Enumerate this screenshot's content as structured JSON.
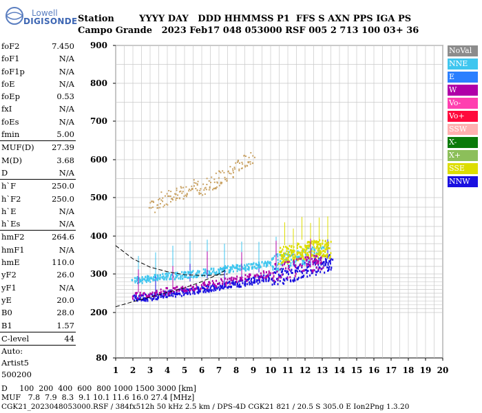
{
  "header": {
    "logo_top": "Lowell",
    "logo_bottom": "DIGISONDE",
    "row1": "Station        YYYY DAY   DDD HHMMSS P1  FFS S AXN PPS IGA PS",
    "row2": "Campo Grande   2023 Feb17 048 053000 RSF 005 2 713 100 03+ 36"
  },
  "params": {
    "group1": [
      {
        "name": "foF2",
        "value": "7.450"
      },
      {
        "name": "foF1",
        "value": "N/A"
      },
      {
        "name": "foF1p",
        "value": "N/A"
      },
      {
        "name": "foE",
        "value": "N/A"
      },
      {
        "name": "foEp",
        "value": "0.53"
      },
      {
        "name": "fxI",
        "value": "N/A"
      },
      {
        "name": "foEs",
        "value": "N/A"
      },
      {
        "name": "fmin",
        "value": "5.00"
      }
    ],
    "group2": [
      {
        "name": "MUF(D)",
        "value": "27.39"
      },
      {
        "name": "M(D)",
        "value": "3.68"
      },
      {
        "name": "D",
        "value": "N/A"
      }
    ],
    "group3": [
      {
        "name": "h`F",
        "value": "250.0"
      },
      {
        "name": "h`F2",
        "value": "250.0"
      },
      {
        "name": "h`E",
        "value": "N/A"
      },
      {
        "name": "h`Es",
        "value": "N/A"
      }
    ],
    "group4": [
      {
        "name": "hmF2",
        "value": "264.6"
      },
      {
        "name": "hmF1",
        "value": "N/A"
      },
      {
        "name": "hmE",
        "value": "110.0"
      },
      {
        "name": "yF2",
        "value": "26.0"
      },
      {
        "name": "yF1",
        "value": "N/A"
      },
      {
        "name": "yE",
        "value": "20.0"
      },
      {
        "name": "B0",
        "value": "28.0"
      },
      {
        "name": "B1",
        "value": "1.57"
      }
    ],
    "clevel": {
      "name": "C-level",
      "value": "44"
    },
    "auto": [
      "Auto:",
      "Artist5",
      "500200"
    ]
  },
  "legend": [
    {
      "label": "NoVal",
      "color": "#8c8c8c"
    },
    {
      "label": "NNE",
      "color": "#3fc6ef"
    },
    {
      "label": "E",
      "color": "#2a7fff"
    },
    {
      "label": "W",
      "color": "#b000a8"
    },
    {
      "label": "Vo-",
      "color": "#ff3fb0"
    },
    {
      "label": "Vo+",
      "color": "#ff0a3c"
    },
    {
      "label": "SSW",
      "color": "#ffb0b0"
    },
    {
      "label": "X-",
      "color": "#0a7a0a"
    },
    {
      "label": "X+",
      "color": "#8cbf5a"
    },
    {
      "label": "SSE",
      "color": "#dddd00"
    },
    {
      "label": "NNW",
      "color": "#1a10e0"
    }
  ],
  "footer": {
    "line1": "D     100  200  400  600  800 1000 1500 3000 [km]",
    "line2": "MUF   7.8  7.9  8.3  9.1 10.1 11.6 16.0 27.4 [MHz]",
    "line3": "CGK21_2023048053000.RSF / 384fx512h 50 kHz 2.5 km / DPS-4D CGK21 821 / 20.5 S 305.0 E Ion2Png 1.3.20"
  },
  "chart_data": {
    "type": "scatter",
    "title": "",
    "xlabel": "",
    "ylabel": "",
    "xlim": [
      1,
      20
    ],
    "ylim": [
      80,
      900
    ],
    "x_ticks": [
      "1",
      "2",
      "3",
      "4",
      "5",
      "6",
      "7",
      "8",
      "9",
      "10",
      "11",
      "12",
      "13",
      "14",
      "15",
      "16",
      "17",
      "18",
      "19",
      "20"
    ],
    "y_ticks": [
      "80",
      "200",
      "300",
      "400",
      "500",
      "600",
      "700",
      "800",
      "900"
    ],
    "y_tick_values": [
      80,
      200,
      300,
      400,
      500,
      600,
      700,
      800,
      900
    ],
    "y_grid_values": [
      200,
      210,
      220,
      230,
      240,
      250,
      260,
      270,
      280,
      290,
      300,
      320,
      340,
      360,
      380,
      400,
      425,
      450,
      475,
      500,
      550,
      600,
      650,
      700,
      750,
      800,
      850,
      900
    ],
    "grid": true,
    "series": [
      {
        "name": "",
        "kind": "echo-band",
        "color": "#1a10e0",
        "points": [
          [
            2.0,
            238
          ],
          [
            3.0,
            243
          ],
          [
            4.0,
            250
          ],
          [
            5.0,
            256
          ],
          [
            6.0,
            262
          ],
          [
            7.0,
            270
          ],
          [
            8.0,
            277
          ],
          [
            9.0,
            285
          ],
          [
            10.0,
            293
          ],
          [
            11.0,
            303
          ],
          [
            12.0,
            315
          ],
          [
            13.0,
            328
          ],
          [
            13.5,
            335
          ]
        ]
      },
      {
        "name": "",
        "kind": "echo-band",
        "color": "#3fc6ef",
        "points": [
          [
            2.0,
            285
          ],
          [
            3.0,
            290
          ],
          [
            4.0,
            296
          ],
          [
            5.0,
            300
          ],
          [
            6.0,
            305
          ],
          [
            7.0,
            312
          ],
          [
            8.0,
            318
          ],
          [
            9.0,
            324
          ],
          [
            10.0,
            330
          ],
          [
            11.0,
            340
          ],
          [
            12.0,
            350
          ],
          [
            13.0,
            358
          ]
        ]
      },
      {
        "name": "",
        "kind": "echo-band",
        "color": "#dddd00",
        "points": [
          [
            10.5,
            350
          ],
          [
            11.0,
            355
          ],
          [
            11.5,
            360
          ],
          [
            12.0,
            365
          ],
          [
            12.5,
            368
          ],
          [
            13.0,
            370
          ],
          [
            13.4,
            365
          ]
        ]
      },
      {
        "name": "",
        "kind": "echo-band",
        "color": "#b000a8",
        "points": [
          [
            2.0,
            245
          ],
          [
            4.0,
            258
          ],
          [
            6.0,
            272
          ],
          [
            8.0,
            288
          ],
          [
            10.0,
            305
          ],
          [
            12.0,
            325
          ],
          [
            13.0,
            335
          ]
        ]
      },
      {
        "name": "",
        "kind": "scatter",
        "color": "#c8a060",
        "points": [
          [
            3.0,
            470
          ],
          [
            3.5,
            495
          ],
          [
            4.0,
            500
          ],
          [
            4.5,
            515
          ],
          [
            5.0,
            510
          ],
          [
            5.5,
            530
          ],
          [
            6.0,
            520
          ],
          [
            6.5,
            540
          ],
          [
            7.0,
            555
          ],
          [
            7.5,
            560
          ],
          [
            8.0,
            580
          ],
          [
            8.5,
            600
          ],
          [
            9.0,
            610
          ]
        ]
      }
    ],
    "trace_lines": [
      {
        "name": "",
        "style": "dashed",
        "color": "#000000",
        "points": [
          [
            1.0,
            375
          ],
          [
            2.0,
            340
          ],
          [
            3.0,
            318
          ],
          [
            4.0,
            306
          ],
          [
            5.0,
            298
          ],
          [
            6.0,
            296
          ],
          [
            7.0,
            297
          ],
          [
            7.5,
            300
          ]
        ]
      },
      {
        "name": "",
        "style": "dashed",
        "color": "#000000",
        "points": [
          [
            1.0,
            215
          ],
          [
            2.0,
            228
          ],
          [
            3.0,
            240
          ],
          [
            4.0,
            252
          ],
          [
            5.0,
            264
          ],
          [
            6.0,
            280
          ],
          [
            7.0,
            300
          ],
          [
            7.45,
            312
          ]
        ]
      }
    ]
  }
}
